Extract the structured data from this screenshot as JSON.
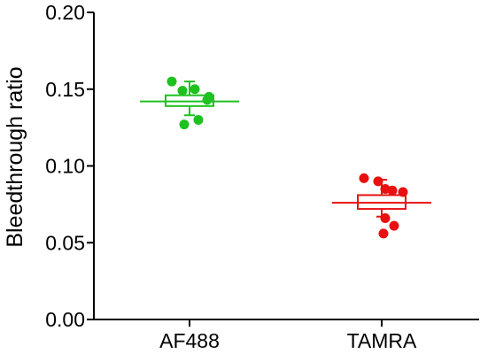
{
  "chart_data": {
    "type": "scatter",
    "subtype": "dot-plot-with-box",
    "title": "",
    "xlabel": "",
    "ylabel": "Bleedthrough ratio",
    "ylim": [
      0,
      0.2
    ],
    "yticks": [
      0.0,
      0.05,
      0.1,
      0.15,
      0.2
    ],
    "ytick_labels": [
      "0.00",
      "0.05",
      "0.10",
      "0.15",
      "0.20"
    ],
    "categories": [
      "AF488",
      "TAMRA"
    ],
    "grid": false,
    "legend": "none",
    "series": [
      {
        "category": "AF488",
        "color": "#1ec21e",
        "points": [
          0.155,
          0.143,
          0.149,
          0.15,
          0.145,
          0.13,
          0.127
        ],
        "box": {
          "q1": 0.139,
          "median": 0.142,
          "q3": 0.146,
          "whisker_low": 0.133,
          "whisker_high": 0.155
        }
      },
      {
        "category": "TAMRA",
        "color": "#e81010",
        "points": [
          0.092,
          0.09,
          0.085,
          0.084,
          0.083,
          0.066,
          0.061,
          0.056
        ],
        "box": {
          "q1": 0.072,
          "median": 0.076,
          "q3": 0.081,
          "whisker_low": 0.067,
          "whisker_high": 0.091
        }
      }
    ]
  }
}
